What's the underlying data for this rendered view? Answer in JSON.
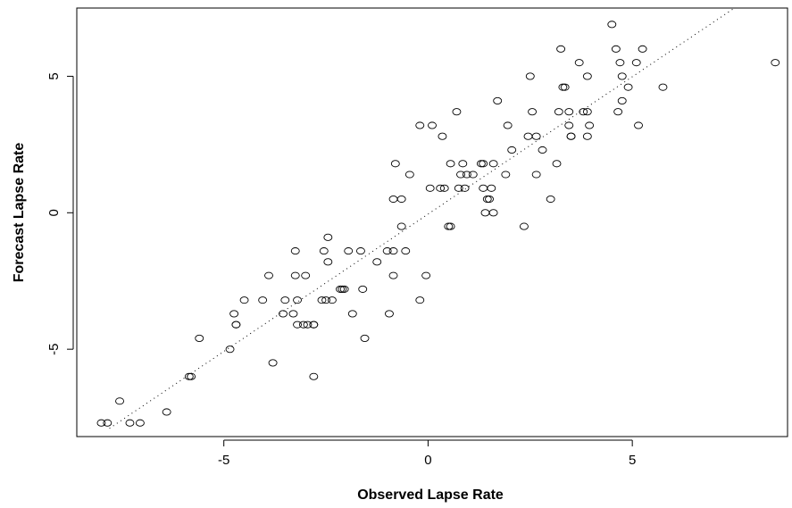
{
  "chart_data": {
    "type": "scatter",
    "title": "",
    "xlabel": "Observed Lapse Rate",
    "ylabel": "Forecast Lapse Rate",
    "xlim": [
      -8.6,
      8.8
    ],
    "ylim": [
      -8.2,
      7.5
    ],
    "xticks": [
      -5,
      0,
      5
    ],
    "yticks": [
      -5,
      0,
      5
    ],
    "xtick_labels": [
      "-5",
      "0",
      "5"
    ],
    "ytick_labels": [
      "-5",
      "0",
      "5"
    ],
    "grid": false,
    "fit_line": {
      "style": "dotted",
      "x": [
        -7.8,
        7.5
      ],
      "y": [
        -7.9,
        7.5
      ]
    },
    "points": [
      [
        -8.0,
        -7.7
      ],
      [
        -7.85,
        -7.7
      ],
      [
        -7.55,
        -6.9
      ],
      [
        -7.3,
        -7.7
      ],
      [
        -7.05,
        -7.7
      ],
      [
        -6.4,
        -7.3
      ],
      [
        -5.85,
        -6.0
      ],
      [
        -5.8,
        -6.0
      ],
      [
        -5.6,
        -4.6
      ],
      [
        -4.85,
        -5.0
      ],
      [
        -4.75,
        -3.7
      ],
      [
        -4.7,
        -4.1
      ],
      [
        -4.7,
        -4.1
      ],
      [
        -4.5,
        -3.2
      ],
      [
        -4.05,
        -3.2
      ],
      [
        -3.9,
        -2.3
      ],
      [
        -3.8,
        -5.5
      ],
      [
        -3.55,
        -3.7
      ],
      [
        -3.5,
        -3.2
      ],
      [
        -3.3,
        -3.7
      ],
      [
        -3.25,
        -1.4
      ],
      [
        -3.25,
        -2.3
      ],
      [
        -3.2,
        -3.2
      ],
      [
        -3.2,
        -4.1
      ],
      [
        -3.05,
        -4.1
      ],
      [
        -3.0,
        -2.3
      ],
      [
        -2.95,
        -4.1
      ],
      [
        -2.8,
        -4.1
      ],
      [
        -2.8,
        -4.1
      ],
      [
        -2.8,
        -6.0
      ],
      [
        -2.6,
        -3.2
      ],
      [
        -2.55,
        -1.4
      ],
      [
        -2.5,
        -3.2
      ],
      [
        -2.45,
        -0.9
      ],
      [
        -2.45,
        -1.8
      ],
      [
        -2.35,
        -3.2
      ],
      [
        -2.15,
        -2.8
      ],
      [
        -2.1,
        -2.8
      ],
      [
        -2.05,
        -2.8
      ],
      [
        -1.95,
        -1.4
      ],
      [
        -1.85,
        -3.7
      ],
      [
        -1.65,
        -1.4
      ],
      [
        -1.6,
        -2.8
      ],
      [
        -1.55,
        -4.6
      ],
      [
        -1.25,
        -1.8
      ],
      [
        -1.0,
        -1.4
      ],
      [
        -0.95,
        -3.7
      ],
      [
        -0.85,
        -2.3
      ],
      [
        -0.85,
        -1.4
      ],
      [
        -0.85,
        0.5
      ],
      [
        -0.8,
        1.8
      ],
      [
        -0.65,
        -0.5
      ],
      [
        -0.65,
        0.5
      ],
      [
        -0.55,
        -1.4
      ],
      [
        -0.45,
        1.4
      ],
      [
        -0.2,
        -3.2
      ],
      [
        -0.2,
        3.2
      ],
      [
        -0.05,
        -2.3
      ],
      [
        0.05,
        0.9
      ],
      [
        0.1,
        3.2
      ],
      [
        0.3,
        0.9
      ],
      [
        0.35,
        2.8
      ],
      [
        0.4,
        0.9
      ],
      [
        0.5,
        -0.5
      ],
      [
        0.55,
        1.8
      ],
      [
        0.55,
        -0.5
      ],
      [
        0.7,
        3.7
      ],
      [
        0.75,
        0.9
      ],
      [
        0.8,
        1.4
      ],
      [
        0.85,
        1.8
      ],
      [
        0.9,
        0.9
      ],
      [
        0.95,
        1.4
      ],
      [
        1.1,
        1.4
      ],
      [
        1.3,
        1.8
      ],
      [
        1.35,
        1.8
      ],
      [
        1.35,
        0.9
      ],
      [
        1.4,
        0.0
      ],
      [
        1.45,
        0.5
      ],
      [
        1.5,
        0.5
      ],
      [
        1.55,
        0.9
      ],
      [
        1.6,
        1.8
      ],
      [
        1.6,
        0.0
      ],
      [
        1.7,
        4.1
      ],
      [
        1.9,
        1.4
      ],
      [
        1.95,
        3.2
      ],
      [
        2.05,
        2.3
      ],
      [
        2.35,
        -0.5
      ],
      [
        2.45,
        2.8
      ],
      [
        2.5,
        5.0
      ],
      [
        2.55,
        3.7
      ],
      [
        2.65,
        2.8
      ],
      [
        2.65,
        1.4
      ],
      [
        2.8,
        2.3
      ],
      [
        3.0,
        0.5
      ],
      [
        3.15,
        1.8
      ],
      [
        3.2,
        3.7
      ],
      [
        3.25,
        6.0
      ],
      [
        3.3,
        4.6
      ],
      [
        3.35,
        4.6
      ],
      [
        3.45,
        3.2
      ],
      [
        3.45,
        3.7
      ],
      [
        3.5,
        2.8
      ],
      [
        3.5,
        2.8
      ],
      [
        3.7,
        5.5
      ],
      [
        3.8,
        3.7
      ],
      [
        3.9,
        3.7
      ],
      [
        3.9,
        2.8
      ],
      [
        3.9,
        5.0
      ],
      [
        3.95,
        3.2
      ],
      [
        4.5,
        6.9
      ],
      [
        4.6,
        6.0
      ],
      [
        4.65,
        3.7
      ],
      [
        4.7,
        5.5
      ],
      [
        4.75,
        4.1
      ],
      [
        4.75,
        5.0
      ],
      [
        4.9,
        4.6
      ],
      [
        5.1,
        5.5
      ],
      [
        5.15,
        3.2
      ],
      [
        5.25,
        6.0
      ],
      [
        5.75,
        4.6
      ],
      [
        8.5,
        5.5
      ]
    ]
  }
}
